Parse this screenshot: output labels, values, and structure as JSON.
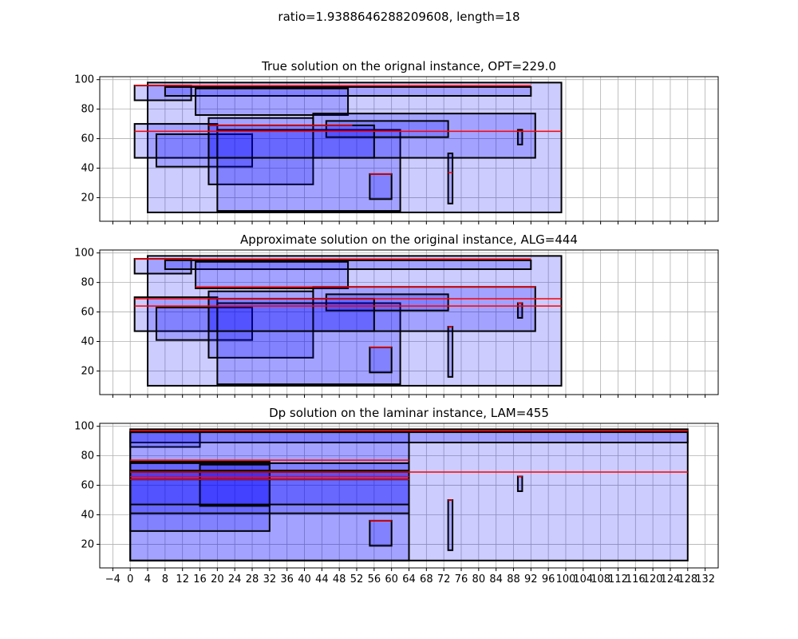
{
  "suptitle": "ratio=1.9388646288209608, length=18",
  "chart_data": [
    {
      "type": "rectangles",
      "title": "True solution on the orignal instance, OPT=229.0",
      "xlim": [
        -7,
        135
      ],
      "ylim": [
        4,
        102
      ],
      "xticks": [
        -4,
        0,
        4,
        8,
        12,
        16,
        20,
        24,
        28,
        32,
        36,
        40,
        44,
        48,
        52,
        56,
        60,
        64,
        68,
        72,
        76,
        80,
        84,
        88,
        92,
        96,
        100,
        104,
        108,
        112,
        116,
        120,
        124,
        128,
        132
      ],
      "yticks": [
        20,
        40,
        60,
        80,
        100
      ],
      "show_xticklabels": false,
      "grid": true,
      "rects": [
        [
          4,
          10,
          99,
          98
        ],
        [
          1,
          86,
          14,
          96
        ],
        [
          8,
          89,
          92,
          95
        ],
        [
          15,
          76,
          50,
          94
        ],
        [
          1,
          47,
          20,
          70
        ],
        [
          6,
          41,
          28,
          63
        ],
        [
          18,
          29,
          42,
          74
        ],
        [
          20,
          11,
          62,
          66
        ],
        [
          42,
          47,
          93,
          77
        ],
        [
          45,
          61,
          73,
          72
        ],
        [
          18,
          47,
          56,
          69
        ],
        [
          55,
          19,
          60,
          36
        ],
        [
          73,
          16,
          74,
          50
        ],
        [
          89,
          56,
          90,
          66
        ]
      ],
      "red_lines": [
        [
          1,
          92,
          96
        ],
        [
          18,
          51,
          69
        ],
        [
          1,
          99,
          65
        ],
        [
          55,
          60,
          36
        ],
        [
          73,
          74,
          37
        ]
      ]
    },
    {
      "type": "rectangles",
      "title": "Approximate solution on the original instance, ALG=444",
      "xlim": [
        -7,
        135
      ],
      "ylim": [
        4,
        102
      ],
      "xticks": [
        -4,
        0,
        4,
        8,
        12,
        16,
        20,
        24,
        28,
        32,
        36,
        40,
        44,
        48,
        52,
        56,
        60,
        64,
        68,
        72,
        76,
        80,
        84,
        88,
        92,
        96,
        100,
        104,
        108,
        112,
        116,
        120,
        124,
        128,
        132
      ],
      "yticks": [
        20,
        40,
        60,
        80,
        100
      ],
      "show_xticklabels": false,
      "grid": true,
      "rects": [
        [
          4,
          10,
          99,
          98
        ],
        [
          1,
          86,
          14,
          96
        ],
        [
          8,
          89,
          92,
          95
        ],
        [
          15,
          76,
          50,
          94
        ],
        [
          1,
          47,
          20,
          70
        ],
        [
          6,
          41,
          28,
          63
        ],
        [
          18,
          29,
          42,
          74
        ],
        [
          20,
          11,
          62,
          66
        ],
        [
          42,
          47,
          93,
          77
        ],
        [
          45,
          61,
          73,
          72
        ],
        [
          18,
          47,
          56,
          69
        ],
        [
          55,
          19,
          60,
          36
        ],
        [
          73,
          16,
          74,
          50
        ],
        [
          89,
          56,
          90,
          66
        ]
      ],
      "red_lines": [
        [
          1,
          92,
          96
        ],
        [
          15,
          93,
          77
        ],
        [
          1,
          99,
          69
        ],
        [
          1,
          99,
          64
        ],
        [
          55,
          60,
          36
        ],
        [
          73,
          74,
          50
        ],
        [
          89,
          90,
          66
        ]
      ]
    },
    {
      "type": "rectangles",
      "title": "Dp solution on the laminar instance, LAM=455",
      "xlim": [
        -7,
        135
      ],
      "ylim": [
        4,
        102
      ],
      "xticks": [
        -4,
        0,
        4,
        8,
        12,
        16,
        20,
        24,
        28,
        32,
        36,
        40,
        44,
        48,
        52,
        56,
        60,
        64,
        68,
        72,
        76,
        80,
        84,
        88,
        92,
        96,
        100,
        104,
        108,
        112,
        116,
        120,
        124,
        128,
        132
      ],
      "yticks": [
        20,
        40,
        60,
        80,
        100
      ],
      "show_xticklabels": true,
      "xticklabels": [
        "−4",
        "0",
        "4",
        "8",
        "12",
        "16",
        "20",
        "24",
        "28",
        "32",
        "36",
        "40",
        "44",
        "48",
        "52",
        "56",
        "60",
        "64",
        "68",
        "72",
        "76",
        "80",
        "84",
        "88",
        "92",
        "96",
        "100",
        "104",
        "108",
        "112",
        "116",
        "120",
        "124",
        "128",
        "132"
      ],
      "grid": true,
      "rects": [
        [
          0,
          9,
          128,
          98
        ],
        [
          0,
          89,
          128,
          96
        ],
        [
          0,
          86,
          16,
          96
        ],
        [
          0,
          9,
          64,
          96
        ],
        [
          0,
          29,
          32,
          76
        ],
        [
          0,
          41,
          64,
          75
        ],
        [
          16,
          46,
          32,
          74
        ],
        [
          0,
          47,
          64,
          70
        ],
        [
          0,
          64,
          64,
          69
        ],
        [
          55,
          19,
          60,
          36
        ],
        [
          73,
          16,
          74,
          50
        ],
        [
          89,
          56,
          90,
          66
        ]
      ],
      "red_lines": [
        [
          0,
          128,
          97
        ],
        [
          0,
          64,
          77
        ],
        [
          0,
          128,
          69
        ],
        [
          0,
          64,
          66
        ],
        [
          0,
          64,
          64
        ],
        [
          55,
          60,
          36
        ],
        [
          73,
          74,
          50
        ],
        [
          89,
          90,
          66
        ]
      ]
    }
  ]
}
